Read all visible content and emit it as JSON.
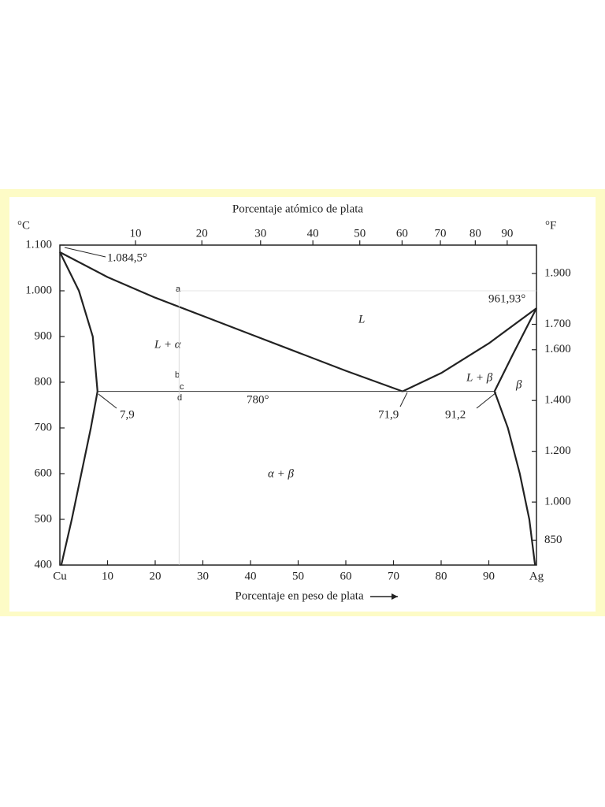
{
  "chart_data": {
    "type": "line",
    "top_axis_label": "Porcentaje atómico de plata",
    "x_label": "Porcentaje en peso de plata",
    "y_label": "°C",
    "y2_label": "°F",
    "xlim": [
      0,
      100
    ],
    "ylim": [
      400,
      1100
    ],
    "xticks": [
      {
        "value": 0,
        "label": "Cu"
      },
      10,
      20,
      30,
      40,
      50,
      60,
      70,
      80,
      90,
      {
        "value": 100,
        "label": "Ag"
      }
    ],
    "x2ticks": [
      10,
      20,
      30,
      40,
      50,
      60,
      70,
      80,
      90
    ],
    "yticks": [
      400,
      500,
      600,
      700,
      800,
      900,
      {
        "value": 1000,
        "label": "1.000"
      },
      {
        "value": 1100,
        "label": "1.100"
      }
    ],
    "y2ticks": [
      {
        "value": 850,
        "label": "850"
      },
      {
        "value": 1000,
        "label": "1.000"
      },
      {
        "value": 1200,
        "label": "1.200"
      },
      {
        "value": 1400,
        "label": "1.400"
      },
      {
        "value": 1600,
        "label": "1.600"
      },
      {
        "value": 1700,
        "label": "1.700"
      },
      {
        "value": 1900,
        "label": "1.900"
      }
    ],
    "series": [
      {
        "color": "#222222",
        "line_width": 2.2,
        "x": [
          0,
          10,
          20,
          30,
          40,
          50,
          60,
          71.9
        ],
        "values": [
          1084.5,
          1030,
          985,
          945,
          905,
          865,
          825,
          780
        ]
      },
      {
        "color": "#222222",
        "line_width": 2.2,
        "x": [
          71.9,
          80,
          90,
          100
        ],
        "values": [
          780,
          820,
          885,
          961.93
        ]
      },
      {
        "color": "#222222",
        "line_width": 2.2,
        "x": [
          0,
          4,
          6.9,
          7.9
        ],
        "values": [
          1084.5,
          1000,
          900,
          780
        ]
      },
      {
        "color": "#222222",
        "line_width": 2.2,
        "x": [
          7.9,
          6.5,
          4.5,
          2.5,
          0.3
        ],
        "values": [
          780,
          700,
          600,
          500,
          400
        ]
      },
      {
        "color": "#222222",
        "line_width": 2.2,
        "x": [
          91.2,
          95,
          100
        ],
        "values": [
          780,
          860,
          961.93
        ]
      },
      {
        "color": "#222222",
        "line_width": 2.2,
        "x": [
          91.2,
          94,
          96.5,
          98.5,
          99.7
        ],
        "values": [
          780,
          700,
          600,
          500,
          400
        ]
      },
      {
        "color": "#333333",
        "line_width": 1,
        "x": [
          7.9,
          91.2
        ],
        "values": [
          780,
          780
        ]
      },
      {
        "color": "#cccccc",
        "line_width": 0.7,
        "x": [
          25,
          25
        ],
        "values": [
          1000,
          400
        ]
      },
      {
        "color": "#dddddd",
        "line_width": 0.7,
        "x": [
          25,
          100
        ],
        "values": [
          1000,
          1000
        ]
      }
    ],
    "annotations": [
      "1.084,5°",
      "961,93°",
      "L",
      "L + α",
      "L + β",
      "β",
      "α + β",
      "780°",
      "7,9",
      "71,9",
      "91,2",
      "a",
      "b",
      "c",
      "d"
    ]
  }
}
